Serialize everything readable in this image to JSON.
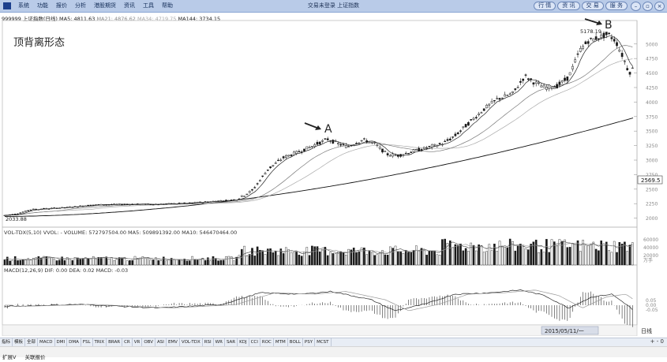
{
  "window": {
    "title": "交易未登录  上证指数",
    "menu": [
      "系统",
      "功能",
      "报价",
      "分析",
      "港股期货",
      "资讯",
      "工具",
      "帮助"
    ],
    "buttons": [
      "行 情",
      "资 讯",
      "交 易",
      "服 务"
    ]
  },
  "price_panel": {
    "info": {
      "code_name": "999999 上证指数(日线)",
      "ma5": "MA5: 4811.63",
      "ma21": "MA21: 4876.62",
      "ma34": "MA34: 4719.75",
      "ma144": "MA144: 3734.15"
    },
    "title": "顶背离形态",
    "annotation_a": "A",
    "annotation_b": "B",
    "high_label": "5178.19",
    "low_label": "2033.88",
    "current_price_tag": "2569.5",
    "y_ticks": [
      "5000",
      "4750",
      "4500",
      "4250",
      "4000",
      "3750",
      "3500",
      "3250",
      "3000",
      "2750",
      "2500",
      "2250",
      "2000"
    ]
  },
  "volume_panel": {
    "info": "VOL-TDX(5,10) VVOL: -   VOLUME: 572797504.00  MA5: 509891392.00  MA10: 546470464.00",
    "y_ticks": [
      "60000",
      "40000",
      "20000"
    ],
    "unit": "万手"
  },
  "macd_panel": {
    "info": "MACD(12,26,9)  DIF: 0.00  DEA: 0.02  MACD: -0.03",
    "y_ticks": [
      "0.05",
      "0.00",
      "-0.05"
    ]
  },
  "time_axis": {
    "date_label": "2015/05/11/一",
    "right_label": "日线"
  },
  "tabs": [
    "指标",
    "模板",
    "全部",
    "MACD",
    "DMI",
    "DMA",
    "FSL",
    "TRIX",
    "BRAR",
    "CR",
    "VR",
    "OBV",
    "ASI",
    "EMV",
    "VOL-TDX",
    "RSI",
    "WR",
    "SAR",
    "KDJ",
    "CCI",
    "ROC",
    "MTM",
    "BOLL",
    "PSY",
    "MCST"
  ],
  "bottom": [
    "扩展V",
    "关联报价"
  ],
  "zoom": [
    "+",
    "-",
    "0"
  ]
}
